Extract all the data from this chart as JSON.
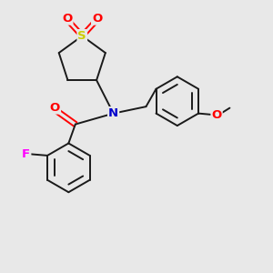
{
  "bg_color": "#e8e8e8",
  "line_color": "#1a1a1a",
  "atom_colors": {
    "S": "#cccc00",
    "O": "#ff0000",
    "N": "#0000cc",
    "F": "#ff00ff",
    "C": "#1a1a1a"
  },
  "lw": 1.4
}
